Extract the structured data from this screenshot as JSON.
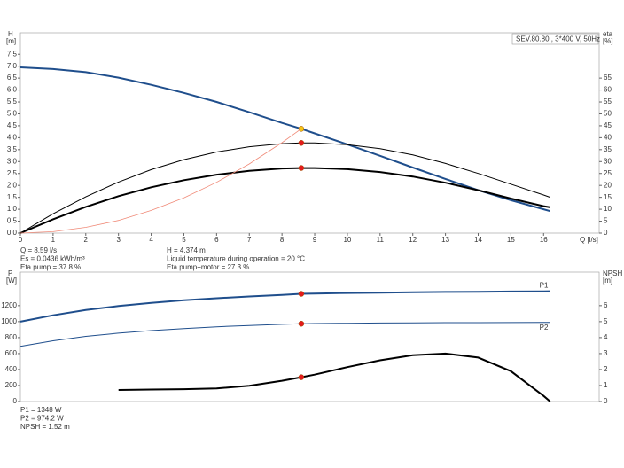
{
  "chart_data": [
    {
      "type": "line",
      "ylabel": "H",
      "yunit": "[m]",
      "y2label": "eta",
      "y2unit": "[%]",
      "xlabel": "Q [l/s]",
      "legend_text": "SEV.80.80 , 3*400 V, 50Hz",
      "xlim": [
        0,
        17.7
      ],
      "xticks": [
        0,
        1,
        2,
        3,
        4,
        5,
        6,
        7,
        8,
        9,
        10,
        11,
        12,
        13,
        14,
        15,
        16
      ],
      "ylim": [
        0,
        8.4
      ],
      "yticks": [
        {
          "value": 0,
          "label": "0.0"
        },
        {
          "value": 0.5,
          "label": "0.5"
        },
        {
          "value": 1,
          "label": "1.0"
        },
        {
          "value": 1.5,
          "label": "1.5"
        },
        {
          "value": 2,
          "label": "2.0"
        },
        {
          "value": 2.5,
          "label": "2.5"
        },
        {
          "value": 3,
          "label": "3.0"
        },
        {
          "value": 3.5,
          "label": "3.5"
        },
        {
          "value": 4,
          "label": "4.0"
        },
        {
          "value": 4.5,
          "label": "4.5"
        },
        {
          "value": 5,
          "label": "5.0"
        },
        {
          "value": 5.5,
          "label": "5.5"
        },
        {
          "value": 6,
          "label": "6.0"
        },
        {
          "value": 6.5,
          "label": "6.5"
        },
        {
          "value": 7,
          "label": "7.0"
        },
        {
          "value": 7.5,
          "label": "7.5"
        }
      ],
      "y2lim": [
        0,
        84
      ],
      "y2ticks": [
        0,
        5,
        10,
        15,
        20,
        25,
        30,
        35,
        40,
        45,
        50,
        55,
        60,
        65
      ],
      "marker_x": 8.59,
      "x": [
        0,
        1,
        2,
        3,
        4,
        5,
        6,
        7,
        8,
        8.59,
        9,
        10,
        11,
        12,
        13,
        14,
        15,
        16,
        16.2
      ],
      "series": [
        {
          "color": "#1f4e8c",
          "width": 2,
          "marker_color": "#f5c518",
          "values": [
            6.95,
            6.88,
            6.75,
            6.52,
            6.22,
            5.88,
            5.5,
            5.07,
            4.62,
            4.374,
            4.18,
            3.72,
            3.24,
            2.75,
            2.27,
            1.8,
            1.38,
            1.0,
            0.92
          ]
        },
        {
          "color": "#000000",
          "width": 1,
          "axis": "y2",
          "marker_color": "#e41a1c",
          "values": [
            0,
            8.1,
            15.2,
            21.4,
            26.6,
            30.8,
            34.0,
            36.2,
            37.5,
            37.8,
            37.8,
            37.1,
            35.4,
            32.8,
            29.2,
            25,
            20.5,
            16,
            15
          ]
        },
        {
          "color": "#000000",
          "width": 2,
          "axis": "y2",
          "marker_color": "#e41a1c",
          "values": [
            0,
            5.8,
            11,
            15.5,
            19.2,
            22.2,
            24.5,
            26.1,
            27.1,
            27.3,
            27.3,
            26.8,
            25.6,
            23.7,
            21.1,
            18,
            14.5,
            11.3,
            10.8
          ]
        },
        {
          "color": "#f08a78",
          "width": 0.8,
          "values": [
            0,
            0.06,
            0.24,
            0.53,
            0.95,
            1.48,
            2.13,
            2.9,
            3.79,
            4.374,
            null,
            null,
            null,
            null,
            null,
            null,
            null,
            null,
            null
          ]
        }
      ],
      "info": [
        [
          "Q = 8.59 l/s",
          "Es = 0.0436 kWh/m³",
          "Eta pump = 37.8 %"
        ],
        [
          "H = 4.374 m",
          "Liquid temperature during operation = 20 °C",
          "Eta pump+motor = 27.3 %"
        ]
      ]
    },
    {
      "type": "line",
      "ylabel": "P",
      "yunit": "[W]",
      "y2label": "NPSH",
      "y2unit": "[m]",
      "xlim": [
        0,
        17.7
      ],
      "ylim": [
        0,
        1620
      ],
      "yticks": [
        0,
        200,
        400,
        600,
        800,
        1000,
        1200
      ],
      "y2lim": [
        0,
        8.1
      ],
      "y2ticks": [
        0,
        1,
        2,
        3,
        4,
        5,
        6
      ],
      "marker_x": 8.59,
      "x": [
        0,
        1,
        2,
        3,
        4,
        5,
        6,
        7,
        8,
        8.59,
        9,
        10,
        11,
        12,
        13,
        14,
        15,
        16,
        16.2
      ],
      "series": [
        {
          "name": "P1",
          "color": "#1f4e8c",
          "width": 2,
          "marker_color": "#e41a1c",
          "values": [
            1000,
            1080,
            1145,
            1195,
            1235,
            1268,
            1293,
            1315,
            1335,
            1348,
            1352,
            1358,
            1363,
            1367,
            1371,
            1374,
            1377,
            1379,
            1380
          ]
        },
        {
          "name": "P2",
          "color": "#1f4e8c",
          "width": 1,
          "marker_color": "#e41a1c",
          "values": [
            690,
            760,
            815,
            855,
            888,
            913,
            935,
            952,
            966,
            974.2,
            976,
            980,
            983,
            985,
            987,
            988,
            989,
            990,
            990
          ]
        },
        {
          "color": "#000000",
          "width": 2,
          "axis": "y2",
          "marker_color": "#e41a1c",
          "values": [
            null,
            null,
            null,
            0.72,
            0.75,
            0.77,
            0.82,
            0.98,
            1.3,
            1.52,
            1.68,
            2.15,
            2.58,
            2.9,
            3.0,
            2.75,
            1.9,
            0.35,
            0
          ]
        }
      ],
      "info": [
        [
          "P1 = 1348 W",
          "P2 = 974.2 W",
          "NPSH = 1.52 m"
        ]
      ]
    }
  ]
}
